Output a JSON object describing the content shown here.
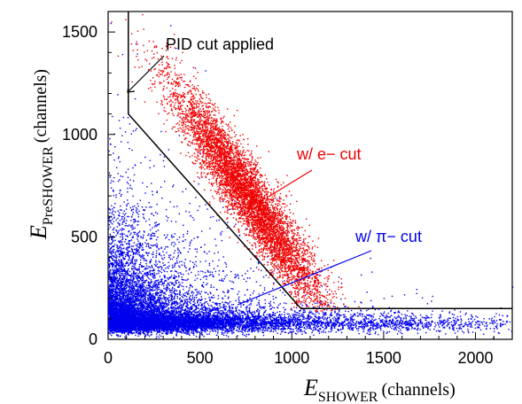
{
  "chart_data": {
    "type": "scatter",
    "title": "",
    "xlabel": {
      "main": "E",
      "subscript": "SHOWER",
      "unit": "(channels)"
    },
    "ylabel": {
      "main": "E",
      "subscript": "PreSHOWER",
      "unit": "(channels)"
    },
    "xlim": [
      0,
      2200
    ],
    "ylim": [
      0,
      1600
    ],
    "x_ticks": [
      {
        "value": 0,
        "label": "0"
      },
      {
        "value": 500,
        "label": "500"
      },
      {
        "value": 1000,
        "label": "1000"
      },
      {
        "value": 1500,
        "label": "1500"
      },
      {
        "value": 2000,
        "label": "2000"
      }
    ],
    "y_ticks": [
      {
        "value": 0,
        "label": "0"
      },
      {
        "value": 500,
        "label": "500"
      },
      {
        "value": 1000,
        "label": "1000"
      },
      {
        "value": 1500,
        "label": "1500"
      }
    ],
    "grid": false,
    "cut_line": {
      "label": "PID cut applied",
      "points": [
        [
          110,
          1600
        ],
        [
          110,
          1100
        ],
        [
          1050,
          150
        ],
        [
          2200,
          150
        ]
      ],
      "color": "#000000"
    },
    "series": [
      {
        "name": "w/ π− cut",
        "color": "#0000ee",
        "distribution": "pion band near E_PreSHOWER ≈ 70–120 channels over E_SHOWER 0–2100, with a sparse tail up to ~1000 channels at low E_SHOWER"
      },
      {
        "name": "w/ e− cut",
        "color": "#ee0000",
        "distribution": "electron band along E_PreSHOWER ≈ 1650 − 1.25·E_SHOWER for E_SHOWER ≈ 250–1300 channels"
      }
    ],
    "annotations": [
      {
        "text": "PID cut applied",
        "color": "#000000",
        "points_to": [
          110,
          1200
        ]
      },
      {
        "text": "w/ e− cut",
        "color": "#ee0000",
        "points_to": [
          870,
          680
        ]
      },
      {
        "text": "w/ π− cut",
        "color": "#0000ee",
        "points_to": [
          700,
          150
        ]
      }
    ]
  }
}
